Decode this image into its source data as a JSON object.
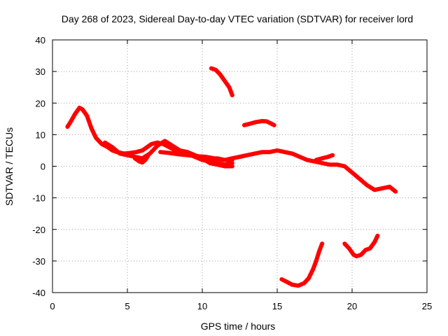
{
  "chart_data": {
    "type": "line",
    "title": "Day 268 of 2023, Sidereal Day-to-day VTEC variation (SDTVAR) for receiver lord",
    "xlabel": "GPS time / hours",
    "ylabel": "SDTVAR / TECUs",
    "xlim": [
      0,
      25
    ],
    "ylim": [
      -40,
      40
    ],
    "xticks": [
      0,
      5,
      10,
      15,
      20,
      25
    ],
    "yticks": [
      -40,
      -30,
      -20,
      -10,
      0,
      10,
      20,
      30,
      40
    ],
    "grid": true,
    "series_color": "#ff0000",
    "series": [
      {
        "name": "trace-main-early",
        "points": [
          [
            1.0,
            12.5
          ],
          [
            1.2,
            14
          ],
          [
            1.5,
            16.5
          ],
          [
            1.8,
            18.5
          ],
          [
            2.0,
            18
          ],
          [
            2.3,
            16
          ],
          [
            2.6,
            12
          ],
          [
            2.9,
            9
          ],
          [
            3.3,
            7
          ],
          [
            3.7,
            6
          ],
          [
            4.0,
            5
          ],
          [
            4.3,
            4.5
          ],
          [
            4.8,
            4
          ],
          [
            5.2,
            4.2
          ],
          [
            5.6,
            4.5
          ],
          [
            6.0,
            5
          ],
          [
            6.3,
            6
          ],
          [
            6.6,
            7
          ],
          [
            7.0,
            7.5
          ],
          [
            7.4,
            7
          ],
          [
            7.8,
            6
          ],
          [
            8.2,
            5
          ],
          [
            8.6,
            4.5
          ],
          [
            9.0,
            4
          ],
          [
            9.5,
            3
          ],
          [
            10.0,
            2
          ],
          [
            10.5,
            1.5
          ],
          [
            11.0,
            1
          ],
          [
            11.5,
            0.5
          ],
          [
            12.0,
            1
          ]
        ]
      },
      {
        "name": "trace-main-late",
        "points": [
          [
            10.0,
            2.5
          ],
          [
            10.5,
            2
          ],
          [
            11.0,
            2.5
          ],
          [
            11.5,
            2
          ],
          [
            12.0,
            2.5
          ],
          [
            12.5,
            3
          ],
          [
            13.0,
            3.5
          ],
          [
            13.5,
            4
          ],
          [
            14.0,
            4.5
          ],
          [
            14.5,
            4.5
          ],
          [
            15.0,
            5
          ],
          [
            15.5,
            4.5
          ],
          [
            16.0,
            4
          ],
          [
            16.5,
            3
          ],
          [
            17.0,
            2
          ],
          [
            17.5,
            1.5
          ],
          [
            18.0,
            1
          ],
          [
            18.5,
            0.5
          ],
          [
            19.0,
            0.5
          ],
          [
            19.5,
            0
          ],
          [
            20.0,
            -2
          ],
          [
            20.5,
            -4
          ],
          [
            21.0,
            -6
          ],
          [
            21.5,
            -7.5
          ],
          [
            22.0,
            -7
          ],
          [
            22.5,
            -6.5
          ],
          [
            22.9,
            -8
          ]
        ]
      },
      {
        "name": "trace-wide-band",
        "points": [
          [
            3.5,
            7.5
          ],
          [
            4.0,
            6
          ],
          [
            4.5,
            4
          ],
          [
            5.0,
            3.5
          ],
          [
            5.5,
            3
          ],
          [
            6.0,
            2.5
          ],
          [
            6.5,
            4
          ],
          [
            7.0,
            6.5
          ],
          [
            7.5,
            8
          ],
          [
            8.0,
            6.5
          ],
          [
            8.5,
            5
          ],
          [
            9.0,
            4.5
          ],
          [
            9.5,
            3.5
          ],
          [
            10.0,
            2.5
          ],
          [
            10.5,
            1
          ],
          [
            11.0,
            0.5
          ],
          [
            11.5,
            0
          ],
          [
            12.0,
            0
          ]
        ]
      },
      {
        "name": "trace-low-branch",
        "points": [
          [
            7.2,
            4.5
          ],
          [
            7.8,
            4.2
          ],
          [
            8.4,
            3.8
          ],
          [
            9.0,
            3.5
          ],
          [
            9.6,
            3.2
          ],
          [
            10.2,
            3
          ],
          [
            10.8,
            2.5
          ],
          [
            11.4,
            2
          ],
          [
            12.0,
            2
          ]
        ]
      },
      {
        "name": "trace-segment-17h",
        "points": [
          [
            17.6,
            2
          ],
          [
            18.0,
            2.5
          ],
          [
            18.4,
            3
          ],
          [
            18.7,
            3.5
          ]
        ]
      },
      {
        "name": "trace-segment-5h",
        "points": [
          [
            5.5,
            2.5
          ],
          [
            5.8,
            1.5
          ],
          [
            6.0,
            1.2
          ],
          [
            6.2,
            2
          ],
          [
            6.4,
            3.5
          ]
        ]
      },
      {
        "name": "trace-segment-11h",
        "points": [
          [
            10.6,
            31
          ],
          [
            10.9,
            30.5
          ],
          [
            11.2,
            29
          ],
          [
            11.5,
            27
          ],
          [
            11.8,
            25
          ],
          [
            12.0,
            22.5
          ]
        ]
      },
      {
        "name": "trace-segment-14h",
        "points": [
          [
            12.8,
            13
          ],
          [
            13.2,
            13.5
          ],
          [
            13.6,
            14
          ],
          [
            14.0,
            14.3
          ],
          [
            14.3,
            14.2
          ],
          [
            14.6,
            13.5
          ],
          [
            14.8,
            13
          ]
        ]
      },
      {
        "name": "trace-segment-16h",
        "points": [
          [
            15.3,
            -35.8
          ],
          [
            15.6,
            -36.5
          ],
          [
            16.0,
            -37.5
          ],
          [
            16.4,
            -37.8
          ],
          [
            16.8,
            -37
          ],
          [
            17.1,
            -35.5
          ],
          [
            17.4,
            -32.5
          ],
          [
            17.6,
            -30
          ],
          [
            17.8,
            -27
          ],
          [
            18.0,
            -24.5
          ]
        ]
      },
      {
        "name": "trace-segment-20h",
        "points": [
          [
            19.5,
            -24.5
          ],
          [
            19.8,
            -26
          ],
          [
            20.1,
            -28
          ],
          [
            20.3,
            -28.5
          ],
          [
            20.6,
            -28
          ],
          [
            20.9,
            -26.5
          ],
          [
            21.2,
            -26
          ],
          [
            21.5,
            -24
          ],
          [
            21.7,
            -22
          ]
        ]
      }
    ]
  }
}
